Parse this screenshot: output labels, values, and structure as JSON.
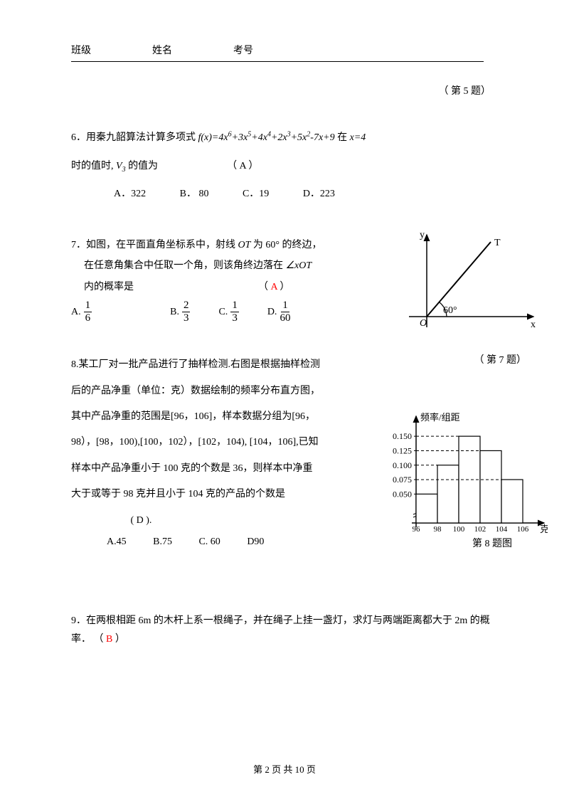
{
  "header": {
    "class_label": "班级",
    "name_label": "姓名",
    "examno_label": "考号"
  },
  "q5": {
    "caption": "（  第 5 题）"
  },
  "q6": {
    "stem_pre": "6．用秦九韶算法计算多项式 ",
    "poly_lhs": "f(x)=",
    "poly_rhs": "4x⁶+3x⁵+4x⁴+2x³+5x²-7x+9",
    "stem_at": "  在 ",
    "x_eq": "x=4",
    "line2_pre": "时的值时, ",
    "v3": "V₃",
    "line2_post": "的值为",
    "answer_paren": "（   A  ）",
    "opt_a": "A．322",
    "opt_b": "B． 80",
    "opt_c": "C．19",
    "opt_d": "D．223"
  },
  "q7": {
    "line1": "7．如图，在平面直角坐标系中，射线 OT 为 60° 的终边，",
    "line2_pre": "在任意角集合中任取一个角，则该角终边落在 ",
    "angle_sym": "∠xOT",
    "line3_pre": "内的概率是",
    "answer_paren_left": "（ ",
    "answer_letter": "A",
    "answer_paren_right": " ）",
    "opt_a_letter": "A.",
    "opt_a_num": "1",
    "opt_a_den": "6",
    "opt_b_letter": "B.",
    "opt_b_num": "2",
    "opt_b_den": "3",
    "opt_c_letter": "C.",
    "opt_c_num": "1",
    "opt_c_den": "3",
    "opt_d_letter": "D.",
    "opt_d_num": "1",
    "opt_d_den": "60",
    "fig_y": "y",
    "fig_x": "x",
    "fig_o": "O",
    "fig_t": "T",
    "fig_angle": "60°",
    "caption": "（  第 7 题）"
  },
  "q8": {
    "text": "8.某工厂对一批产品进行了抽样检测.右图是根据抽样检测后的产品净重（单位：克）数据绘制的频率分布直方图，其中产品净重的范围是[96，106]，样本数据分组为[96，98），[98，100),[100，102），[102，104), [104，106],已知样本中产品净重小于 100 克的个数是 36，则样本中净重大于或等于 98 克并且小于 104 克的产品的个数是",
    "answer_paren": "(   D    ).",
    "opt_a": "A.45",
    "opt_b": "B.75",
    "opt_c": "C.  60",
    "opt_d": "D90",
    "chart": {
      "ylabel": "频率/组距",
      "xlabel": "克",
      "caption": "第 8 题图",
      "yticks": [
        "0.050",
        "0.075",
        "0.100",
        "0.125",
        "0.150"
      ],
      "xticks": [
        "96",
        "98",
        "100",
        "102",
        "104",
        "106"
      ],
      "bar_values": [
        0.05,
        0.1,
        0.15,
        0.125,
        0.075
      ],
      "ymax": 0.16,
      "bar_color": "#ffffff",
      "line_color": "#000000",
      "dash": "4,3"
    }
  },
  "q9": {
    "text": "9．在两根相距 6m 的木杆上系一根绳子，并在绳子上挂一盏灯，求灯与两端距离都大于 2m 的概率．",
    "answer_paren_left": "（  ",
    "answer_letter": "B",
    "answer_paren_right": "  ）"
  },
  "footer": {
    "text": "第 2 页 共 10 页"
  }
}
